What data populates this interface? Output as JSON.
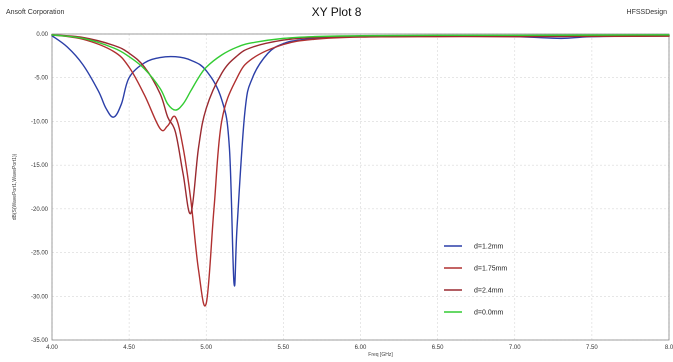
{
  "header": {
    "left_text": "Ansoft Corporation",
    "title": "XY Plot 8",
    "right_text": "HFSSDesign"
  },
  "chart_data": {
    "type": "line",
    "title": "XY Plot 8",
    "xlabel": "Freq [GHz]",
    "ylabel": "dB(S(WavePort1,WavePort1))",
    "xlim": [
      4.0,
      8.0
    ],
    "ylim": [
      -35.0,
      0.0
    ],
    "x_ticks": [
      {
        "value": 4.0,
        "label": "4.00"
      },
      {
        "value": 4.5,
        "label": "4.50"
      },
      {
        "value": 5.0,
        "label": "5.00"
      },
      {
        "value": 5.5,
        "label": "5.50"
      },
      {
        "value": 6.0,
        "label": "6.00"
      },
      {
        "value": 6.5,
        "label": "6.50"
      },
      {
        "value": 7.0,
        "label": "7.00"
      },
      {
        "value": 7.5,
        "label": "7.50"
      },
      {
        "value": 8.0,
        "label": "8.0"
      }
    ],
    "y_ticks": [
      {
        "value": 0.0,
        "label": "0.00"
      },
      {
        "value": -5.0,
        "label": "-5.00"
      },
      {
        "value": -10.0,
        "label": "-10.00"
      },
      {
        "value": -15.0,
        "label": "-15.00"
      },
      {
        "value": -20.0,
        "label": "-20.00"
      },
      {
        "value": -25.0,
        "label": "-25.00"
      },
      {
        "value": -30.0,
        "label": "-30.00"
      },
      {
        "value": -35.0,
        "label": "-35.00"
      }
    ],
    "grid": true,
    "legend_position": "bottom-right",
    "series": [
      {
        "name": "d=1.2mm",
        "color": "#2b3fa8",
        "x": [
          4.0,
          4.1,
          4.2,
          4.3,
          4.35,
          4.4,
          4.45,
          4.5,
          4.6,
          4.7,
          4.8,
          4.9,
          5.0,
          5.1,
          5.15,
          5.18,
          5.2,
          5.25,
          5.3,
          5.4,
          5.5,
          5.6,
          5.8,
          6.0,
          6.5,
          7.0,
          7.3,
          7.5,
          8.0
        ],
        "y": [
          -0.2,
          -1.5,
          -3.5,
          -6.5,
          -8.5,
          -9.5,
          -8.0,
          -5.0,
          -3.3,
          -2.7,
          -2.6,
          -3.0,
          -4.2,
          -7.5,
          -13.0,
          -28.5,
          -22.0,
          -9.0,
          -5.0,
          -2.2,
          -1.1,
          -0.7,
          -0.4,
          -0.3,
          -0.25,
          -0.3,
          -0.5,
          -0.3,
          -0.2
        ]
      },
      {
        "name": "d=1.75mm",
        "color": "#b03030",
        "x": [
          4.0,
          4.2,
          4.4,
          4.5,
          4.6,
          4.7,
          4.75,
          4.8,
          4.85,
          4.9,
          4.95,
          5.0,
          5.05,
          5.1,
          5.2,
          5.3,
          5.5,
          5.7,
          6.0,
          6.5,
          7.0,
          8.0
        ],
        "y": [
          -0.1,
          -0.6,
          -2.0,
          -3.8,
          -7.0,
          -10.8,
          -10.5,
          -9.5,
          -13.0,
          -19.0,
          -27.0,
          -30.8,
          -20.0,
          -10.0,
          -5.0,
          -2.8,
          -1.2,
          -0.6,
          -0.35,
          -0.3,
          -0.3,
          -0.25
        ]
      },
      {
        "name": "d=2.4mm",
        "color": "#9a2a30",
        "x": [
          4.0,
          4.2,
          4.4,
          4.5,
          4.6,
          4.7,
          4.75,
          4.8,
          4.85,
          4.9,
          4.95,
          5.0,
          5.1,
          5.2,
          5.3,
          5.5,
          5.7,
          6.0,
          6.5,
          7.0,
          8.0
        ],
        "y": [
          -0.1,
          -0.4,
          -1.3,
          -2.2,
          -3.8,
          -6.8,
          -9.5,
          -11.2,
          -16.0,
          -20.5,
          -13.0,
          -8.5,
          -4.5,
          -2.5,
          -1.5,
          -0.7,
          -0.4,
          -0.3,
          -0.25,
          -0.25,
          -0.2
        ]
      },
      {
        "name": "d=0.0mm",
        "color": "#33cc33",
        "x": [
          4.0,
          4.2,
          4.4,
          4.5,
          4.6,
          4.7,
          4.75,
          4.8,
          4.85,
          4.9,
          4.95,
          5.0,
          5.1,
          5.2,
          5.3,
          5.5,
          5.7,
          6.0,
          6.5,
          7.0,
          8.0
        ],
        "y": [
          -0.1,
          -0.5,
          -1.6,
          -2.6,
          -4.0,
          -6.2,
          -8.0,
          -8.7,
          -8.0,
          -6.5,
          -5.0,
          -3.8,
          -2.4,
          -1.5,
          -1.0,
          -0.5,
          -0.3,
          -0.2,
          -0.15,
          -0.15,
          -0.1
        ]
      }
    ]
  }
}
